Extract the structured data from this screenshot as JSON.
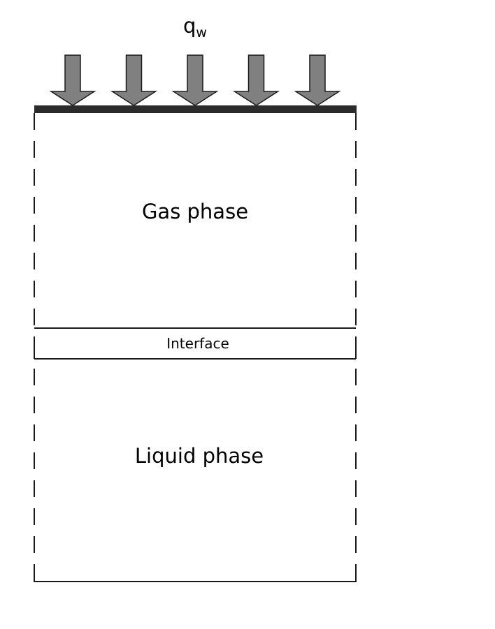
{
  "heat_flux": {
    "symbol": "q",
    "subscript": "w",
    "arrow_count": 5,
    "arrow_fill": "#808080",
    "arrow_stroke": "#1a1a1a"
  },
  "wall": {
    "color": "#2b2b2b"
  },
  "regions": {
    "gas": "Gas phase",
    "interface": "Interface",
    "liquid": "Liquid phase"
  },
  "colors": {
    "line": "#1a1a1a",
    "text": "#000000"
  }
}
